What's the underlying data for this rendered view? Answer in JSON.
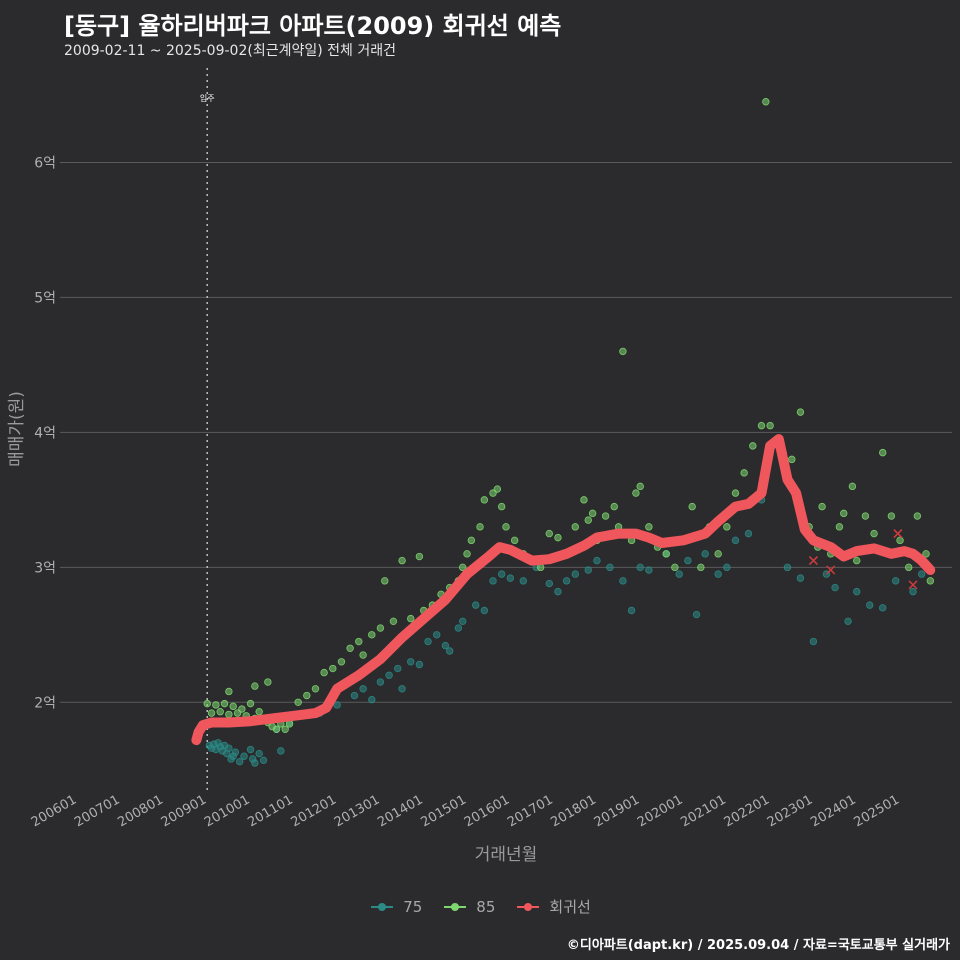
{
  "chart_data": {
    "type": "scatter",
    "title": "[동구] 율하리버파크 아파트(2009) 회귀선 예측",
    "subtitle": "2009-02-11 ~ 2025-09-02(최근계약일) 전체 거래건",
    "xlabel": "거래년월",
    "ylabel": "매매가(원)",
    "x_tick_labels": [
      "200601",
      "200701",
      "200801",
      "200901",
      "201001",
      "201101",
      "201201",
      "201301",
      "201401",
      "201501",
      "201601",
      "201701",
      "201801",
      "201901",
      "202001",
      "202101",
      "202201",
      "202301",
      "202401",
      "202501"
    ],
    "y_ticks": [
      2,
      3,
      4,
      5,
      6
    ],
    "y_tick_labels": [
      "2억",
      "3억",
      "4억",
      "5억",
      "6억"
    ],
    "ylim": [
      1.35,
      6.7
    ],
    "xlim": [
      2005.6,
      2026.2
    ],
    "grid": "horizontal",
    "legend_position": "bottom",
    "annotation": {
      "label": "입주",
      "x": 2009.0
    },
    "series": [
      {
        "name": "75",
        "color": "#2a8a86",
        "points": [
          [
            2009.05,
            1.68
          ],
          [
            2009.1,
            1.66
          ],
          [
            2009.15,
            1.69
          ],
          [
            2009.2,
            1.65
          ],
          [
            2009.25,
            1.7
          ],
          [
            2009.3,
            1.67
          ],
          [
            2009.35,
            1.64
          ],
          [
            2009.4,
            1.68
          ],
          [
            2009.45,
            1.62
          ],
          [
            2009.5,
            1.66
          ],
          [
            2009.55,
            1.58
          ],
          [
            2009.6,
            1.6
          ],
          [
            2009.65,
            1.63
          ],
          [
            2009.75,
            1.56
          ],
          [
            2009.85,
            1.6
          ],
          [
            2010.0,
            1.65
          ],
          [
            2010.05,
            1.58
          ],
          [
            2010.1,
            1.55
          ],
          [
            2010.2,
            1.62
          ],
          [
            2010.3,
            1.57
          ],
          [
            2010.6,
            1.8
          ],
          [
            2010.7,
            1.64
          ],
          [
            2010.9,
            1.85
          ],
          [
            2011.6,
            1.92
          ],
          [
            2011.8,
            2.0
          ],
          [
            2012.0,
            1.98
          ],
          [
            2012.4,
            2.05
          ],
          [
            2012.6,
            2.1
          ],
          [
            2012.8,
            2.02
          ],
          [
            2013.0,
            2.15
          ],
          [
            2013.2,
            2.2
          ],
          [
            2013.4,
            2.25
          ],
          [
            2013.5,
            2.1
          ],
          [
            2013.7,
            2.3
          ],
          [
            2013.9,
            2.28
          ],
          [
            2014.1,
            2.45
          ],
          [
            2014.3,
            2.5
          ],
          [
            2014.5,
            2.42
          ],
          [
            2014.6,
            2.38
          ],
          [
            2014.8,
            2.55
          ],
          [
            2014.9,
            2.6
          ],
          [
            2015.2,
            2.72
          ],
          [
            2015.4,
            2.68
          ],
          [
            2015.6,
            2.9
          ],
          [
            2015.8,
            2.95
          ],
          [
            2016.0,
            2.92
          ],
          [
            2016.3,
            2.9
          ],
          [
            2016.6,
            3.0
          ],
          [
            2016.9,
            2.88
          ],
          [
            2017.1,
            2.82
          ],
          [
            2017.3,
            2.9
          ],
          [
            2017.5,
            2.95
          ],
          [
            2017.8,
            2.98
          ],
          [
            2018.0,
            3.05
          ],
          [
            2018.3,
            3.0
          ],
          [
            2018.6,
            2.9
          ],
          [
            2018.8,
            2.68
          ],
          [
            2019.0,
            3.0
          ],
          [
            2019.2,
            2.98
          ],
          [
            2019.6,
            3.1
          ],
          [
            2019.9,
            2.95
          ],
          [
            2020.1,
            3.05
          ],
          [
            2020.3,
            2.65
          ],
          [
            2020.5,
            3.1
          ],
          [
            2020.8,
            2.95
          ],
          [
            2021.0,
            3.0
          ],
          [
            2021.2,
            3.2
          ],
          [
            2021.5,
            3.25
          ],
          [
            2021.8,
            3.5
          ],
          [
            2022.4,
            3.0
          ],
          [
            2022.7,
            2.92
          ],
          [
            2023.0,
            2.45
          ],
          [
            2023.3,
            2.95
          ],
          [
            2023.5,
            2.85
          ],
          [
            2023.8,
            2.6
          ],
          [
            2024.0,
            2.82
          ],
          [
            2024.3,
            2.72
          ],
          [
            2024.6,
            2.7
          ],
          [
            2024.9,
            2.9
          ],
          [
            2025.3,
            2.82
          ],
          [
            2025.5,
            2.95
          ]
        ]
      },
      {
        "name": "85",
        "color": "#7ed66f",
        "points": [
          [
            2009.0,
            1.99
          ],
          [
            2009.1,
            1.92
          ],
          [
            2009.2,
            1.98
          ],
          [
            2009.3,
            1.93
          ],
          [
            2009.4,
            1.99
          ],
          [
            2009.5,
            1.91
          ],
          [
            2009.6,
            1.97
          ],
          [
            2009.7,
            1.92
          ],
          [
            2009.8,
            1.95
          ],
          [
            2009.9,
            1.9
          ],
          [
            2010.0,
            1.99
          ],
          [
            2010.1,
            1.88
          ],
          [
            2010.2,
            1.93
          ],
          [
            2010.3,
            1.87
          ],
          [
            2010.4,
            1.85
          ],
          [
            2010.5,
            1.82
          ],
          [
            2010.6,
            1.8
          ],
          [
            2010.7,
            1.84
          ],
          [
            2010.8,
            1.8
          ],
          [
            2010.9,
            1.84
          ],
          [
            2009.5,
            2.08
          ],
          [
            2010.1,
            2.12
          ],
          [
            2010.4,
            2.15
          ],
          [
            2011.1,
            2.0
          ],
          [
            2011.3,
            2.05
          ],
          [
            2011.5,
            2.1
          ],
          [
            2011.7,
            2.22
          ],
          [
            2011.9,
            2.25
          ],
          [
            2012.1,
            2.3
          ],
          [
            2012.3,
            2.4
          ],
          [
            2012.5,
            2.45
          ],
          [
            2012.6,
            2.35
          ],
          [
            2012.8,
            2.5
          ],
          [
            2013.0,
            2.55
          ],
          [
            2013.1,
            2.9
          ],
          [
            2013.3,
            2.6
          ],
          [
            2013.5,
            3.05
          ],
          [
            2013.7,
            2.62
          ],
          [
            2013.9,
            3.08
          ],
          [
            2014.0,
            2.68
          ],
          [
            2014.2,
            2.72
          ],
          [
            2014.4,
            2.8
          ],
          [
            2014.6,
            2.85
          ],
          [
            2014.8,
            2.9
          ],
          [
            2014.9,
            3.0
          ],
          [
            2015.0,
            3.1
          ],
          [
            2015.1,
            3.2
          ],
          [
            2015.3,
            3.3
          ],
          [
            2015.4,
            3.5
          ],
          [
            2015.6,
            3.55
          ],
          [
            2015.7,
            3.58
          ],
          [
            2015.8,
            3.45
          ],
          [
            2015.9,
            3.3
          ],
          [
            2016.1,
            3.2
          ],
          [
            2016.3,
            3.1
          ],
          [
            2016.5,
            3.05
          ],
          [
            2016.7,
            3.0
          ],
          [
            2016.9,
            3.25
          ],
          [
            2017.1,
            3.22
          ],
          [
            2017.3,
            3.1
          ],
          [
            2017.5,
            3.3
          ],
          [
            2017.7,
            3.5
          ],
          [
            2017.8,
            3.35
          ],
          [
            2017.9,
            3.4
          ],
          [
            2018.0,
            3.2
          ],
          [
            2018.2,
            3.38
          ],
          [
            2018.4,
            3.45
          ],
          [
            2018.5,
            3.3
          ],
          [
            2018.6,
            4.6
          ],
          [
            2018.8,
            3.2
          ],
          [
            2018.9,
            3.55
          ],
          [
            2019.0,
            3.6
          ],
          [
            2019.2,
            3.3
          ],
          [
            2019.4,
            3.15
          ],
          [
            2019.6,
            3.1
          ],
          [
            2019.8,
            3.0
          ],
          [
            2020.0,
            3.2
          ],
          [
            2020.2,
            3.45
          ],
          [
            2020.4,
            3.0
          ],
          [
            2020.6,
            3.3
          ],
          [
            2020.8,
            3.1
          ],
          [
            2021.0,
            3.3
          ],
          [
            2021.2,
            3.55
          ],
          [
            2021.4,
            3.7
          ],
          [
            2021.6,
            3.9
          ],
          [
            2021.8,
            4.05
          ],
          [
            2021.9,
            6.45
          ],
          [
            2022.0,
            4.05
          ],
          [
            2022.2,
            3.95
          ],
          [
            2022.3,
            3.85
          ],
          [
            2022.5,
            3.8
          ],
          [
            2022.7,
            4.15
          ],
          [
            2022.9,
            3.3
          ],
          [
            2023.0,
            3.2
          ],
          [
            2023.1,
            3.15
          ],
          [
            2023.2,
            3.45
          ],
          [
            2023.4,
            3.1
          ],
          [
            2023.6,
            3.3
          ],
          [
            2023.7,
            3.4
          ],
          [
            2023.9,
            3.6
          ],
          [
            2024.0,
            3.05
          ],
          [
            2024.2,
            3.38
          ],
          [
            2024.4,
            3.25
          ],
          [
            2024.6,
            3.85
          ],
          [
            2024.8,
            3.38
          ],
          [
            2025.0,
            3.2
          ],
          [
            2025.2,
            3.0
          ],
          [
            2025.4,
            3.38
          ],
          [
            2025.6,
            3.1
          ],
          [
            2025.7,
            2.9
          ]
        ]
      },
      {
        "name": "회귀선",
        "color": "#f0575c",
        "points": [
          [
            2008.75,
            1.72
          ],
          [
            2008.8,
            1.78
          ],
          [
            2008.9,
            1.83
          ],
          [
            2009.1,
            1.85
          ],
          [
            2009.5,
            1.85
          ],
          [
            2010.0,
            1.86
          ],
          [
            2010.5,
            1.88
          ],
          [
            2011.0,
            1.9
          ],
          [
            2011.5,
            1.92
          ],
          [
            2011.75,
            1.96
          ],
          [
            2012.0,
            2.1
          ],
          [
            2012.5,
            2.2
          ],
          [
            2013.0,
            2.32
          ],
          [
            2013.5,
            2.48
          ],
          [
            2014.0,
            2.62
          ],
          [
            2014.5,
            2.76
          ],
          [
            2015.0,
            2.95
          ],
          [
            2015.5,
            3.08
          ],
          [
            2015.75,
            3.15
          ],
          [
            2016.0,
            3.13
          ],
          [
            2016.5,
            3.05
          ],
          [
            2016.9,
            3.06
          ],
          [
            2017.3,
            3.1
          ],
          [
            2017.7,
            3.16
          ],
          [
            2018.0,
            3.22
          ],
          [
            2018.5,
            3.25
          ],
          [
            2018.9,
            3.25
          ],
          [
            2019.2,
            3.22
          ],
          [
            2019.5,
            3.18
          ],
          [
            2020.0,
            3.2
          ],
          [
            2020.5,
            3.25
          ],
          [
            2020.8,
            3.34
          ],
          [
            2021.2,
            3.45
          ],
          [
            2021.5,
            3.47
          ],
          [
            2021.8,
            3.55
          ],
          [
            2022.0,
            3.9
          ],
          [
            2022.2,
            3.95
          ],
          [
            2022.4,
            3.65
          ],
          [
            2022.6,
            3.55
          ],
          [
            2022.8,
            3.28
          ],
          [
            2023.0,
            3.2
          ],
          [
            2023.4,
            3.15
          ],
          [
            2023.7,
            3.08
          ],
          [
            2024.0,
            3.12
          ],
          [
            2024.4,
            3.14
          ],
          [
            2024.8,
            3.1
          ],
          [
            2025.1,
            3.12
          ],
          [
            2025.3,
            3.1
          ],
          [
            2025.5,
            3.05
          ],
          [
            2025.7,
            2.98
          ]
        ]
      }
    ],
    "marked_points": [
      [
        2023.0,
        3.05
      ],
      [
        2023.4,
        2.98
      ],
      [
        2024.95,
        3.25
      ],
      [
        2025.3,
        2.87
      ]
    ]
  },
  "caption": "©디아파트(dapt.kr) / 2025.09.04 / 자료=국토교통부 실거래가",
  "colors": {
    "background": "#2b2b2d",
    "grid": "#5a5a5c",
    "text": "#a8a8a8"
  }
}
